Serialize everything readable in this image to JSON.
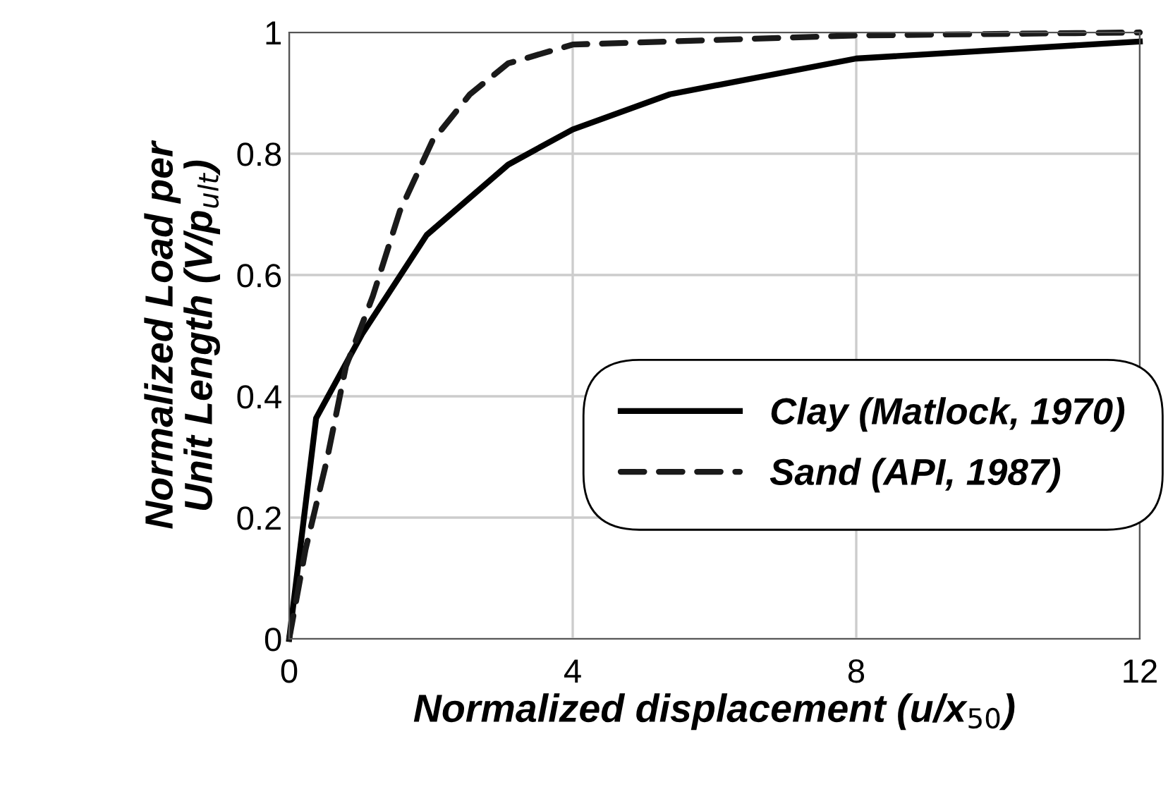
{
  "chart_data": {
    "type": "line",
    "xlabel": "Normalized displacement (u/x$_{50}$)",
    "ylabel": "Normalized Load per\nUnit Length (V/p$_{ult}$)",
    "xlim": [
      0,
      12
    ],
    "ylim": [
      0,
      1
    ],
    "xticks": [
      0,
      4,
      8,
      12
    ],
    "yticks": [
      0,
      0.2,
      0.4,
      0.6,
      0.8,
      1
    ],
    "grid": true,
    "legend": "right",
    "marker": "none",
    "series": [
      {
        "name": "Clay (Matlock, 1970)",
        "color": "#000000",
        "line_style": "solid",
        "x": [
          0,
          0.38,
          1.03,
          1.94,
          3.09,
          4,
          5.37,
          8,
          12
        ],
        "values": [
          0,
          0.364,
          0.503,
          0.666,
          0.782,
          0.84,
          0.898,
          0.957,
          0.985
        ]
      },
      {
        "name": "Sand (API, 1987)",
        "color": "#1a1a1a",
        "line_style": "dashed",
        "x": [
          0,
          0.23,
          0.53,
          0.8,
          1.18,
          1.56,
          2.02,
          2.55,
          3.09,
          4,
          8,
          12
        ],
        "values": [
          0,
          0.147,
          0.294,
          0.449,
          0.565,
          0.705,
          0.821,
          0.898,
          0.949,
          0.98,
          0.995,
          1.0
        ]
      }
    ]
  }
}
